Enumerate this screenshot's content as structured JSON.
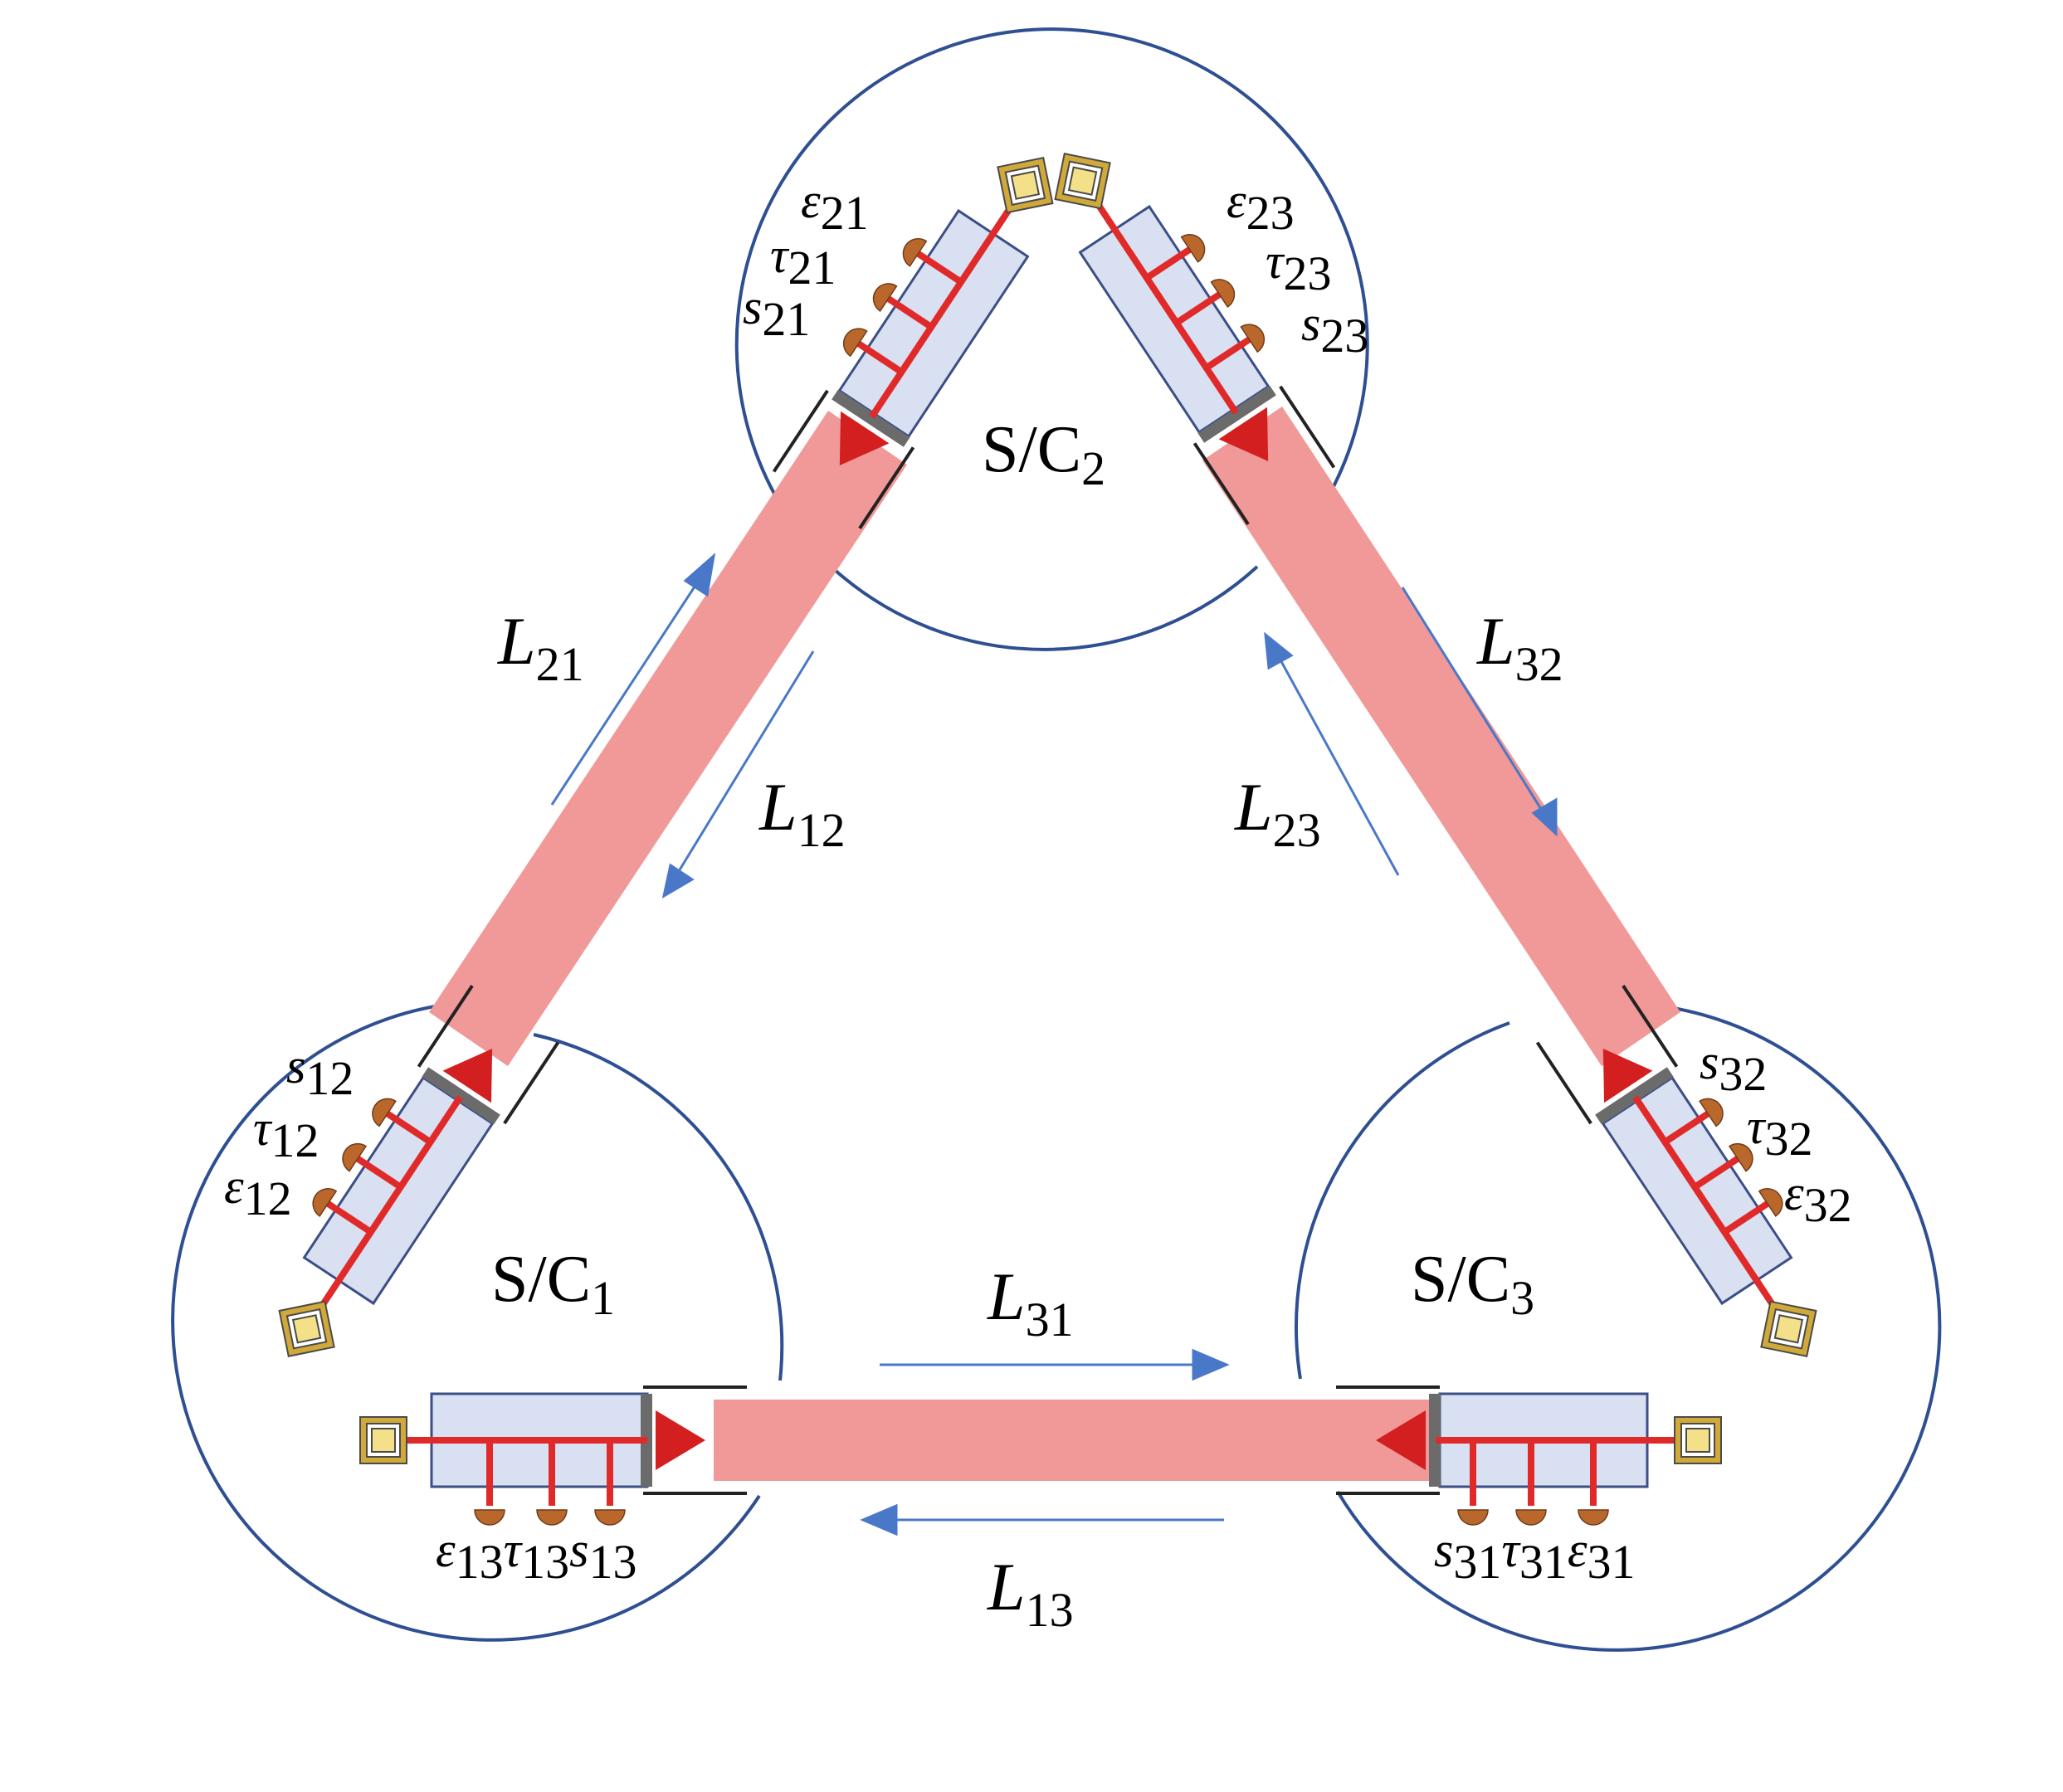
{
  "colors": {
    "circle": "#2f4f93",
    "beam": "#f09998",
    "arrow": "#4a78c8",
    "bench": "#d8e0f1",
    "bench_stroke": "#3b4f86",
    "line": "#e02a2a",
    "triangle": "#d31f1f",
    "mirror": "#6b6b6b",
    "cap": "#b9672b",
    "source_outer": "#d0a93a",
    "source_inner": "#f5e08a"
  },
  "spacecraft": [
    {
      "id": "sc1",
      "label": "S/C",
      "sub": "1"
    },
    {
      "id": "sc2",
      "label": "S/C",
      "sub": "2"
    },
    {
      "id": "sc3",
      "label": "S/C",
      "sub": "3"
    }
  ],
  "links": [
    {
      "id": "L21",
      "symbol": "L",
      "sub": "21"
    },
    {
      "id": "L12",
      "symbol": "L",
      "sub": "12"
    },
    {
      "id": "L32",
      "symbol": "L",
      "sub": "32"
    },
    {
      "id": "L23",
      "symbol": "L",
      "sub": "23"
    },
    {
      "id": "L31",
      "symbol": "L",
      "sub": "31"
    },
    {
      "id": "L13",
      "symbol": "L",
      "sub": "13"
    }
  ],
  "interferometers": {
    "sc1_top": [
      {
        "sym": "s",
        "sub": "12"
      },
      {
        "sym": "τ",
        "sub": "12"
      },
      {
        "sym": "ε",
        "sub": "12"
      }
    ],
    "sc1_bottom": [
      {
        "sym": "ε",
        "sub": "13"
      },
      {
        "sym": "τ",
        "sub": "13"
      },
      {
        "sym": "s",
        "sub": "13"
      }
    ],
    "sc2_left": [
      {
        "sym": "ε",
        "sub": "21"
      },
      {
        "sym": "τ",
        "sub": "21"
      },
      {
        "sym": "s",
        "sub": "21"
      }
    ],
    "sc2_right": [
      {
        "sym": "ε",
        "sub": "23"
      },
      {
        "sym": "τ",
        "sub": "23"
      },
      {
        "sym": "s",
        "sub": "23"
      }
    ],
    "sc3_top": [
      {
        "sym": "s",
        "sub": "32"
      },
      {
        "sym": "τ",
        "sub": "32"
      },
      {
        "sym": "ε",
        "sub": "32"
      }
    ],
    "sc3_bottom": [
      {
        "sym": "s",
        "sub": "31"
      },
      {
        "sym": "τ",
        "sub": "31"
      },
      {
        "sym": "ε",
        "sub": "31"
      }
    ]
  }
}
